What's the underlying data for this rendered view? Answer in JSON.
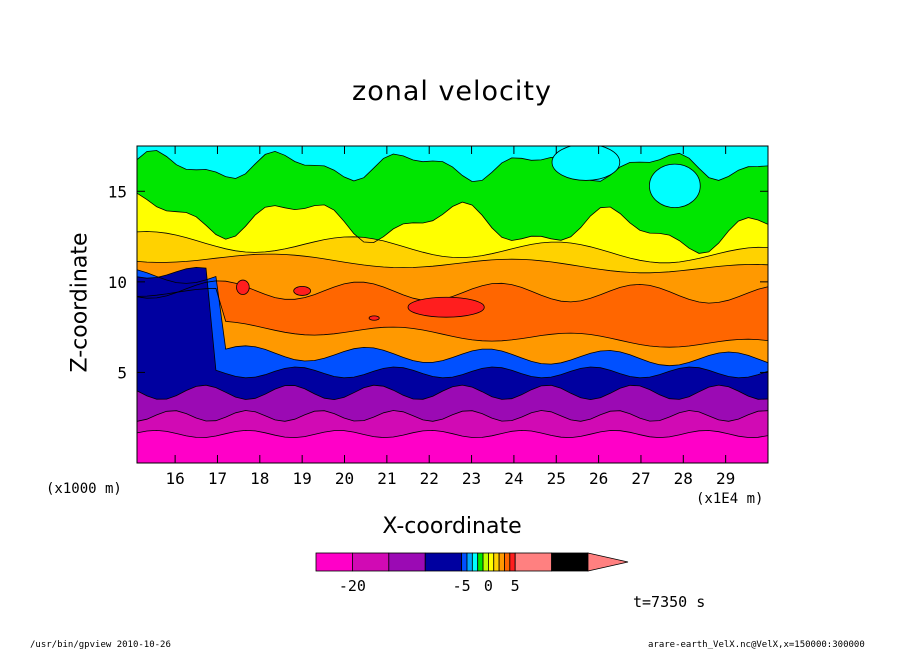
{
  "chart_data": {
    "type": "heatmap",
    "title": "zonal velocity",
    "xlabel": "X-coordinate",
    "ylabel": "Z-coordinate",
    "x_unit": "(x1E4 m)",
    "y_unit": "(x1000 m)",
    "xlim": [
      15.1,
      30.0
    ],
    "ylim": [
      0,
      17.5
    ],
    "x_ticks": [
      16,
      17,
      18,
      19,
      20,
      21,
      22,
      23,
      24,
      25,
      26,
      27,
      28,
      29
    ],
    "y_ticks": [
      5,
      10,
      15
    ],
    "contour_levels": [
      -25,
      -20,
      -15,
      -10,
      -5,
      -4,
      -3,
      -2,
      -1,
      0,
      1,
      2,
      3,
      4,
      5,
      10,
      15
    ],
    "colorbar_labels": [
      -20,
      -5,
      0,
      5
    ],
    "colors": [
      "#ff00c8",
      "#d10ab4",
      "#9b0ab4",
      "#0000a0",
      "#0050ff",
      "#00a8ff",
      "#00ffff",
      "#00e600",
      "#bfff00",
      "#ffff00",
      "#ffd200",
      "#ff9900",
      "#ff6600",
      "#ff1e1e",
      "#ff8080"
    ],
    "grid": false,
    "legend": "colorbar-bottom",
    "time_label": "t=7350 s"
  },
  "footer": {
    "left": "/usr/bin/gpview   2010-10-26",
    "right": "arare-earth_VelX.nc@VelX,x=150000:300000"
  }
}
